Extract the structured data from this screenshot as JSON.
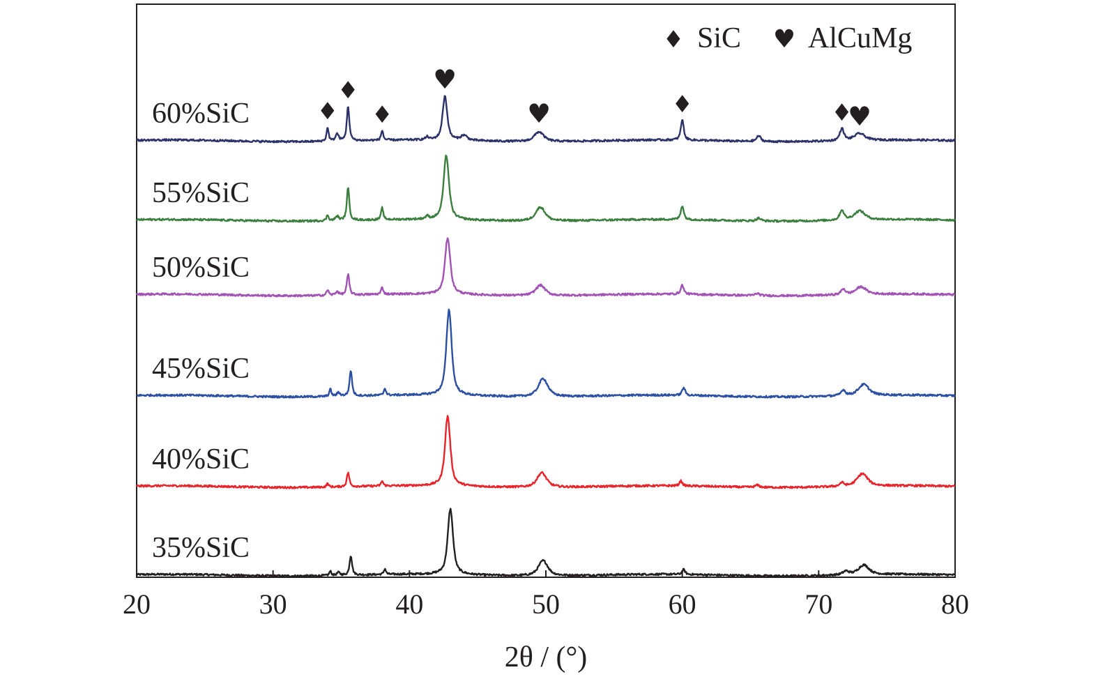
{
  "chart_data": {
    "type": "line",
    "title": "",
    "xlabel": "2θ / (°)",
    "ylabel": "",
    "xlim": [
      20,
      80
    ],
    "xticks": [
      20,
      30,
      40,
      50,
      60,
      70,
      80
    ],
    "ylim": [
      0,
      6.6
    ],
    "y_ticks_shown": false,
    "grid": false,
    "legend": {
      "position": "top-right",
      "entries": [
        {
          "symbol": "diamond",
          "glyph": "♦",
          "label": "SiC"
        },
        {
          "symbol": "heart",
          "glyph": "♥",
          "label": "AlCuMg"
        }
      ]
    },
    "series": [
      {
        "name": "35%SiC",
        "color": "#231f20",
        "offset": 0.45,
        "peaks": [
          [
            34.2,
            0.06,
            0.1
          ],
          [
            34.8,
            0.04,
            0.15
          ],
          [
            35.7,
            0.28,
            0.12
          ],
          [
            38.2,
            0.08,
            0.1
          ],
          [
            43.0,
            0.94,
            0.25
          ],
          [
            49.8,
            0.22,
            0.45
          ],
          [
            60.1,
            0.07,
            0.14
          ],
          [
            72.0,
            0.05,
            0.3
          ],
          [
            73.3,
            0.14,
            0.5
          ]
        ]
      },
      {
        "name": "40%SiC",
        "color": "#e8242a",
        "offset": 1.72,
        "peaks": [
          [
            34.0,
            0.05,
            0.1
          ],
          [
            35.5,
            0.2,
            0.12
          ],
          [
            38.0,
            0.07,
            0.1
          ],
          [
            42.8,
            1.0,
            0.25
          ],
          [
            49.7,
            0.21,
            0.45
          ],
          [
            59.9,
            0.07,
            0.14
          ],
          [
            65.5,
            0.03,
            0.2
          ],
          [
            71.7,
            0.05,
            0.2
          ],
          [
            73.2,
            0.18,
            0.5
          ]
        ]
      },
      {
        "name": "45%SiC",
        "color": "#2a4fa3",
        "offset": 3.02,
        "peaks": [
          [
            34.2,
            0.1,
            0.1
          ],
          [
            34.8,
            0.05,
            0.15
          ],
          [
            35.7,
            0.36,
            0.12
          ],
          [
            38.2,
            0.1,
            0.1
          ],
          [
            42.9,
            1.23,
            0.25
          ],
          [
            49.8,
            0.26,
            0.45
          ],
          [
            60.1,
            0.11,
            0.14
          ],
          [
            71.8,
            0.08,
            0.2
          ],
          [
            73.3,
            0.16,
            0.5
          ]
        ]
      },
      {
        "name": "50%SiC",
        "color": "#a152b4",
        "offset": 4.47,
        "peaks": [
          [
            34.0,
            0.08,
            0.1
          ],
          [
            34.7,
            0.05,
            0.15
          ],
          [
            35.5,
            0.29,
            0.12
          ],
          [
            38.0,
            0.1,
            0.1
          ],
          [
            42.8,
            0.81,
            0.25
          ],
          [
            49.6,
            0.15,
            0.45
          ],
          [
            60.0,
            0.13,
            0.14
          ],
          [
            65.5,
            0.03,
            0.2
          ],
          [
            71.8,
            0.08,
            0.2
          ],
          [
            73.1,
            0.11,
            0.5
          ]
        ]
      },
      {
        "name": "55%SiC",
        "color": "#3b7f3e",
        "offset": 5.54,
        "peaks": [
          [
            34.0,
            0.08,
            0.1
          ],
          [
            34.7,
            0.06,
            0.15
          ],
          [
            35.5,
            0.46,
            0.12
          ],
          [
            38.0,
            0.17,
            0.1
          ],
          [
            41.3,
            0.04,
            0.15
          ],
          [
            42.7,
            0.92,
            0.25
          ],
          [
            49.6,
            0.2,
            0.45
          ],
          [
            60.0,
            0.2,
            0.14
          ],
          [
            65.6,
            0.04,
            0.2
          ],
          [
            71.7,
            0.14,
            0.2
          ],
          [
            73.0,
            0.13,
            0.5
          ]
        ]
      },
      {
        "name": "60%SiC",
        "color": "#2b3169",
        "offset": 6.68,
        "peaks": [
          [
            34.0,
            0.19,
            0.1
          ],
          [
            34.7,
            0.1,
            0.15
          ],
          [
            35.5,
            0.49,
            0.12
          ],
          [
            38.0,
            0.14,
            0.1
          ],
          [
            41.3,
            0.04,
            0.15
          ],
          [
            42.6,
            0.63,
            0.22
          ],
          [
            44.0,
            0.07,
            0.3
          ],
          [
            49.5,
            0.14,
            0.45
          ],
          [
            60.0,
            0.29,
            0.14
          ],
          [
            65.6,
            0.08,
            0.2
          ],
          [
            71.7,
            0.17,
            0.2
          ],
          [
            73.0,
            0.1,
            0.5
          ]
        ]
      }
    ],
    "phase_annotations": [
      {
        "symbol": "diamond",
        "glyph": "♦",
        "x": 34.0
      },
      {
        "symbol": "diamond",
        "glyph": "♦",
        "x": 35.5
      },
      {
        "symbol": "diamond",
        "glyph": "♦",
        "x": 38.0
      },
      {
        "symbol": "heart",
        "glyph": "♥",
        "x": 42.6
      },
      {
        "symbol": "heart",
        "glyph": "♥",
        "x": 49.5
      },
      {
        "symbol": "diamond",
        "glyph": "♦",
        "x": 60.0
      },
      {
        "symbol": "diamond",
        "glyph": "♦",
        "x": 71.7
      },
      {
        "symbol": "heart",
        "glyph": "♥",
        "x": 73.0
      }
    ]
  }
}
